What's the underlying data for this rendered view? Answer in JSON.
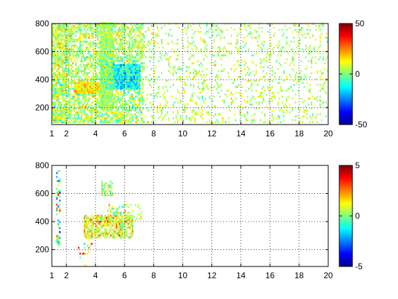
{
  "chart_data": [
    {
      "type": "heatmap",
      "title": "",
      "xlabel": "",
      "ylabel": "",
      "xlim": [
        1,
        20
      ],
      "ylim": [
        80,
        800
      ],
      "xticks": [
        1,
        2,
        4,
        6,
        8,
        10,
        12,
        14,
        16,
        18,
        20
      ],
      "yticks": [
        200,
        400,
        600,
        800
      ],
      "grid": true,
      "colorbar": {
        "range": [
          -50,
          50
        ],
        "ticks": [
          -50,
          0,
          50
        ]
      },
      "colormap": "jet",
      "regions": [
        {
          "x": [
            1,
            2.2
          ],
          "y": [
            90,
            800
          ],
          "density": 0.85,
          "mean": 5,
          "spread": 14
        },
        {
          "x": [
            2.2,
            4.3
          ],
          "y": [
            90,
            800
          ],
          "density": 0.62,
          "mean": 5,
          "spread": 13
        },
        {
          "x": [
            4.3,
            7.2
          ],
          "y": [
            90,
            800
          ],
          "density": 0.65,
          "mean": 4,
          "spread": 13
        },
        {
          "x": [
            7.2,
            20
          ],
          "y": [
            90,
            800
          ],
          "density": 0.16,
          "mean": 5,
          "spread": 10
        }
      ],
      "features": [
        {
          "x": [
            2.5,
            4.4
          ],
          "y": [
            300,
            380
          ],
          "density": 1.0,
          "mean": 14,
          "spread": 10
        },
        {
          "x": [
            4.3,
            7
          ],
          "y": [
            330,
            500
          ],
          "density": 1.0,
          "mean": -12,
          "spread": 12
        },
        {
          "x": [
            4.3,
            5.1
          ],
          "y": [
            180,
            800
          ],
          "density": 0.9,
          "mean": 3,
          "spread": 10
        }
      ]
    },
    {
      "type": "heatmap",
      "title": "",
      "xlabel": "",
      "ylabel": "",
      "xlim": [
        1,
        20
      ],
      "ylim": [
        80,
        800
      ],
      "xticks": [
        1,
        2,
        4,
        6,
        8,
        10,
        12,
        14,
        16,
        18,
        20
      ],
      "yticks": [
        200,
        400,
        600,
        800
      ],
      "grid": true,
      "colorbar": {
        "range": [
          -5,
          5
        ],
        "ticks": [
          -5,
          0,
          5
        ]
      },
      "colormap": "jet",
      "regions": [
        {
          "x": [
            3.2,
            6.5
          ],
          "y": [
            280,
            440
          ],
          "density": 0.75,
          "mean": 1.2,
          "spread": 1.6
        },
        {
          "x": [
            4.4,
            5.1
          ],
          "y": [
            580,
            680
          ],
          "density": 0.6,
          "mean": 0.5,
          "spread": 1.5
        },
        {
          "x": [
            4.8,
            7.2
          ],
          "y": [
            400,
            520
          ],
          "density": 0.3,
          "mean": 0.5,
          "spread": 1.5
        }
      ],
      "features": [
        {
          "x": [
            1.3,
            1.6
          ],
          "y": [
            220,
            760
          ],
          "density": 0.35,
          "mean": -1,
          "spread": 3
        },
        {
          "x": [
            2.8,
            3.8
          ],
          "y": [
            80,
            300
          ],
          "density": 0.08,
          "mean": 1,
          "spread": 2.5
        }
      ]
    }
  ]
}
